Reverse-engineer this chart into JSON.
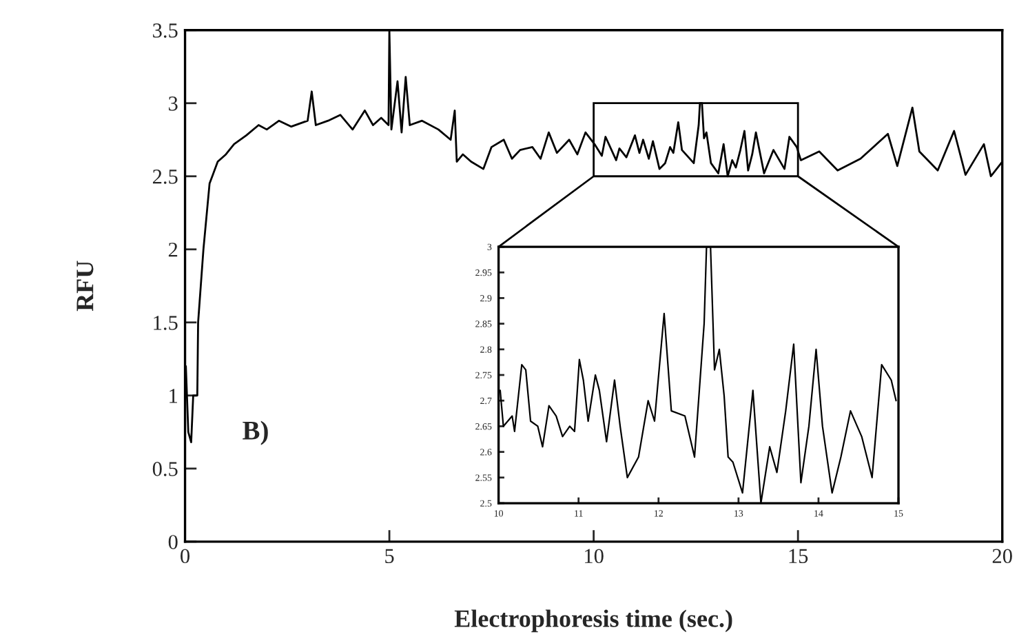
{
  "chart_data": [
    {
      "type": "line",
      "xlabel": "Electrophoresis time (sec.)",
      "ylabel": "RFU",
      "annotations": [
        "B)"
      ],
      "color": "#000000",
      "grid": false,
      "marker": "none",
      "line_style": "solid",
      "x": [
        0.02,
        0.08,
        0.15,
        0.2,
        0.3,
        0.32,
        0.45,
        0.6,
        0.8,
        1.0,
        1.2,
        1.5,
        1.8,
        2.0,
        2.3,
        2.6,
        3.0,
        3.1,
        3.2,
        3.5,
        3.8,
        4.1,
        4.4,
        4.6,
        4.8,
        4.98,
        5.0,
        5.05,
        5.2,
        5.3,
        5.4,
        5.5,
        5.8,
        6.2,
        6.5,
        6.6,
        6.65,
        6.8,
        7.0,
        7.3,
        7.5,
        7.8,
        8.0,
        8.2,
        8.5,
        8.7,
        8.9,
        9.1,
        9.4,
        9.6,
        9.8,
        10.02,
        10.2,
        10.29,
        10.55,
        10.63,
        10.8,
        11.01,
        11.12,
        11.21,
        11.35,
        11.45,
        11.61,
        11.75,
        11.87,
        11.95,
        12.07,
        12.16,
        12.45,
        12.57,
        12.6,
        12.65,
        12.7,
        12.76,
        12.87,
        13.05,
        13.18,
        13.28,
        13.39,
        13.48,
        13.59,
        13.69,
        13.78,
        13.88,
        13.97,
        14.17,
        14.4,
        14.67,
        14.79,
        14.97,
        15.07,
        15.52,
        15.97,
        16.53,
        17.2,
        17.43,
        17.8,
        17.97,
        18.42,
        18.82,
        19.1,
        19.55,
        19.72,
        20.0
      ],
      "values": [
        1.2,
        0.75,
        0.68,
        1.0,
        1.0,
        1.5,
        2.0,
        2.45,
        2.6,
        2.65,
        2.72,
        2.78,
        2.85,
        2.82,
        2.88,
        2.84,
        2.88,
        3.08,
        2.85,
        2.88,
        2.92,
        2.82,
        2.95,
        2.85,
        2.9,
        2.85,
        3.5,
        2.82,
        3.15,
        2.8,
        3.18,
        2.85,
        2.88,
        2.82,
        2.75,
        2.95,
        2.6,
        2.65,
        2.6,
        2.55,
        2.7,
        2.75,
        2.62,
        2.68,
        2.7,
        2.62,
        2.8,
        2.66,
        2.75,
        2.65,
        2.8,
        2.72,
        2.64,
        2.77,
        2.61,
        2.69,
        2.63,
        2.78,
        2.66,
        2.75,
        2.62,
        2.74,
        2.55,
        2.59,
        2.7,
        2.66,
        2.87,
        2.68,
        2.59,
        2.85,
        3.0,
        3.0,
        2.76,
        2.8,
        2.59,
        2.52,
        2.72,
        2.5,
        2.61,
        2.56,
        2.68,
        2.81,
        2.54,
        2.65,
        2.8,
        2.52,
        2.68,
        2.55,
        2.77,
        2.7,
        2.61,
        2.67,
        2.54,
        2.62,
        2.79,
        2.57,
        2.97,
        2.67,
        2.54,
        2.81,
        2.51,
        2.72,
        2.5,
        2.6
      ],
      "xlim": [
        0,
        20
      ],
      "ylim": [
        0,
        3.5
      ],
      "xticks": [
        0,
        5,
        10,
        15,
        20
      ],
      "yticks": [
        0,
        0.5,
        1,
        1.5,
        2,
        2.5,
        3,
        3.5
      ]
    },
    {
      "type": "line",
      "color": "#000000",
      "grid": false,
      "marker": "none",
      "line_style": "solid",
      "x": [
        10.02,
        10.06,
        10.17,
        10.2,
        10.29,
        10.34,
        10.4,
        10.49,
        10.55,
        10.63,
        10.72,
        10.8,
        10.89,
        10.95,
        11.01,
        11.06,
        11.12,
        11.21,
        11.26,
        11.35,
        11.45,
        11.52,
        11.61,
        11.75,
        11.87,
        11.95,
        12.07,
        12.16,
        12.33,
        12.45,
        12.57,
        12.6,
        12.65,
        12.7,
        12.76,
        12.82,
        12.87,
        12.93,
        13.05,
        13.18,
        13.28,
        13.39,
        13.48,
        13.59,
        13.69,
        13.78,
        13.88,
        13.97,
        14.05,
        14.17,
        14.28,
        14.4,
        14.54,
        14.67,
        14.79,
        14.91,
        14.97
      ],
      "values": [
        2.72,
        2.65,
        2.67,
        2.64,
        2.77,
        2.76,
        2.66,
        2.65,
        2.61,
        2.69,
        2.67,
        2.63,
        2.65,
        2.64,
        2.78,
        2.74,
        2.66,
        2.75,
        2.72,
        2.62,
        2.74,
        2.65,
        2.55,
        2.59,
        2.7,
        2.66,
        2.87,
        2.68,
        2.67,
        2.59,
        2.85,
        3.0,
        3.0,
        2.76,
        2.8,
        2.71,
        2.59,
        2.58,
        2.52,
        2.72,
        2.5,
        2.61,
        2.56,
        2.68,
        2.81,
        2.54,
        2.65,
        2.8,
        2.65,
        2.52,
        2.59,
        2.68,
        2.63,
        2.55,
        2.77,
        2.74,
        2.7
      ],
      "xlim": [
        10,
        15
      ],
      "ylim": [
        2.5,
        3
      ],
      "xticks": [
        10,
        11,
        12,
        13,
        14,
        15
      ],
      "yticks": [
        2.5,
        2.55,
        2.6,
        2.65,
        2.7,
        2.75,
        2.8,
        2.85,
        2.9,
        2.95,
        3
      ]
    }
  ]
}
